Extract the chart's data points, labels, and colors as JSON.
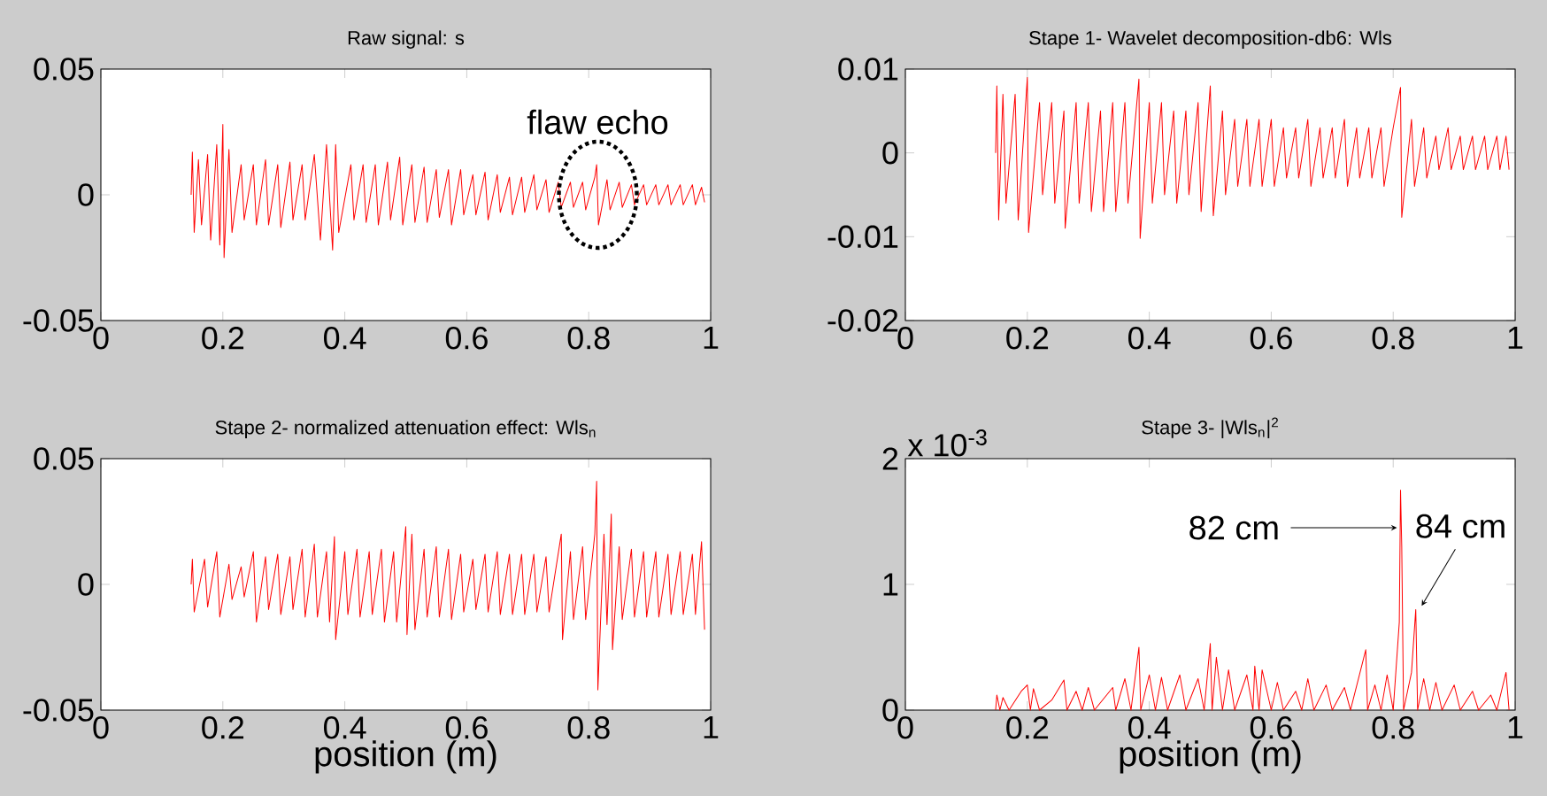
{
  "chart_data": [
    {
      "type": "line",
      "title": "Raw signal: s",
      "color": "#ff0000",
      "xlim": [
        0,
        1
      ],
      "xticks": [
        0,
        0.2,
        0.4,
        0.6,
        0.8,
        1
      ],
      "ylim": [
        -0.05,
        0.05
      ],
      "yticks": [
        -0.05,
        0,
        0.05
      ],
      "annotations": [
        {
          "text": "flaw echo",
          "x": 0.815,
          "y": 0
        }
      ],
      "x": [
        0.148,
        0.15,
        0.153,
        0.16,
        0.165,
        0.175,
        0.18,
        0.19,
        0.195,
        0.2,
        0.202,
        0.21,
        0.215,
        0.23,
        0.235,
        0.25,
        0.255,
        0.27,
        0.275,
        0.29,
        0.295,
        0.31,
        0.315,
        0.33,
        0.335,
        0.35,
        0.36,
        0.37,
        0.38,
        0.385,
        0.39,
        0.41,
        0.415,
        0.43,
        0.435,
        0.45,
        0.455,
        0.47,
        0.475,
        0.49,
        0.495,
        0.51,
        0.515,
        0.53,
        0.535,
        0.55,
        0.555,
        0.57,
        0.575,
        0.59,
        0.595,
        0.61,
        0.615,
        0.63,
        0.635,
        0.65,
        0.655,
        0.67,
        0.675,
        0.69,
        0.695,
        0.71,
        0.715,
        0.73,
        0.735,
        0.75,
        0.755,
        0.77,
        0.775,
        0.79,
        0.795,
        0.81,
        0.813,
        0.816,
        0.83,
        0.835,
        0.85,
        0.855,
        0.87,
        0.875,
        0.89,
        0.895,
        0.91,
        0.915,
        0.93,
        0.935,
        0.95,
        0.955,
        0.97,
        0.975,
        0.985,
        0.99
      ],
      "values": [
        0,
        0.017,
        -0.015,
        0.014,
        -0.012,
        0.016,
        -0.018,
        0.02,
        -0.02,
        0.028,
        -0.025,
        0.018,
        -0.015,
        0.012,
        -0.01,
        0.012,
        -0.012,
        0.014,
        -0.012,
        0.012,
        -0.013,
        0.013,
        -0.01,
        0.012,
        -0.01,
        0.016,
        -0.018,
        0.02,
        -0.022,
        0.02,
        -0.015,
        0.012,
        -0.01,
        0.012,
        -0.011,
        0.012,
        -0.012,
        0.013,
        -0.01,
        0.015,
        -0.012,
        0.012,
        -0.011,
        0.011,
        -0.011,
        0.01,
        -0.009,
        0.01,
        -0.012,
        0.01,
        -0.008,
        0.008,
        -0.008,
        0.009,
        -0.01,
        0.008,
        -0.007,
        0.007,
        -0.008,
        0.007,
        -0.007,
        0.008,
        -0.006,
        0.006,
        -0.007,
        0.005,
        -0.005,
        0.005,
        -0.005,
        0.005,
        -0.006,
        0.007,
        0.012,
        -0.012,
        0.006,
        -0.006,
        0.005,
        -0.005,
        0.004,
        -0.004,
        0.004,
        -0.004,
        0.004,
        -0.004,
        0.004,
        -0.004,
        0.004,
        -0.004,
        0.004,
        -0.004,
        0.003,
        -0.003
      ]
    },
    {
      "type": "line",
      "title": "Stape 1- Wavelet decomposition-db6: Wls",
      "color": "#ff0000",
      "xlim": [
        0,
        1
      ],
      "xticks": [
        0,
        0.2,
        0.4,
        0.6,
        0.8,
        1
      ],
      "ylim": [
        -0.02,
        0.01
      ],
      "yticks": [
        -0.02,
        -0.01,
        0,
        0.01
      ],
      "x": [
        0.148,
        0.15,
        0.153,
        0.16,
        0.165,
        0.18,
        0.185,
        0.2,
        0.202,
        0.22,
        0.225,
        0.24,
        0.245,
        0.26,
        0.262,
        0.28,
        0.285,
        0.3,
        0.305,
        0.32,
        0.325,
        0.34,
        0.345,
        0.36,
        0.365,
        0.383,
        0.385,
        0.4,
        0.405,
        0.42,
        0.425,
        0.44,
        0.445,
        0.46,
        0.465,
        0.48,
        0.485,
        0.5,
        0.505,
        0.52,
        0.525,
        0.54,
        0.545,
        0.56,
        0.565,
        0.58,
        0.585,
        0.6,
        0.605,
        0.62,
        0.625,
        0.64,
        0.645,
        0.66,
        0.665,
        0.68,
        0.685,
        0.7,
        0.705,
        0.72,
        0.725,
        0.74,
        0.745,
        0.76,
        0.765,
        0.78,
        0.785,
        0.8,
        0.812,
        0.814,
        0.83,
        0.835,
        0.85,
        0.855,
        0.87,
        0.875,
        0.89,
        0.895,
        0.91,
        0.915,
        0.93,
        0.935,
        0.95,
        0.955,
        0.97,
        0.975,
        0.985,
        0.99
      ],
      "values": [
        0,
        0.008,
        -0.008,
        0.007,
        -0.006,
        0.007,
        -0.008,
        0.009,
        -0.0095,
        0.006,
        -0.005,
        0.006,
        -0.006,
        0.005,
        -0.009,
        0.006,
        -0.006,
        0.006,
        -0.007,
        0.005,
        -0.007,
        0.006,
        -0.007,
        0.006,
        -0.006,
        0.0088,
        -0.0102,
        0.006,
        -0.006,
        0.006,
        -0.005,
        0.005,
        -0.006,
        0.005,
        -0.005,
        0.006,
        -0.007,
        0.008,
        -0.0075,
        0.005,
        -0.005,
        0.004,
        -0.004,
        0.004,
        -0.004,
        0.004,
        -0.004,
        0.004,
        -0.004,
        0.003,
        -0.003,
        0.003,
        -0.003,
        0.004,
        -0.004,
        0.003,
        -0.003,
        0.003,
        -0.003,
        0.004,
        -0.004,
        0.003,
        -0.003,
        0.003,
        -0.003,
        0.003,
        -0.004,
        0.003,
        0.0078,
        -0.0077,
        0.004,
        -0.004,
        0.003,
        -0.003,
        0.002,
        -0.002,
        0.003,
        -0.002,
        0.002,
        -0.002,
        0.002,
        -0.002,
        0.002,
        -0.002,
        0.002,
        -0.002,
        0.002,
        -0.002
      ]
    },
    {
      "type": "line",
      "title": "Stape 2- normalized attenuation effect: Wls$_{n}$",
      "xlabel": "position (m)",
      "color": "#ff0000",
      "xlim": [
        0,
        1
      ],
      "xticks": [
        0,
        0.2,
        0.4,
        0.6,
        0.8,
        1
      ],
      "ylim": [
        -0.05,
        0.05
      ],
      "yticks": [
        -0.05,
        0,
        0.05
      ],
      "x": [
        0.148,
        0.15,
        0.153,
        0.17,
        0.175,
        0.19,
        0.195,
        0.21,
        0.215,
        0.23,
        0.235,
        0.25,
        0.255,
        0.27,
        0.275,
        0.29,
        0.295,
        0.31,
        0.315,
        0.33,
        0.335,
        0.35,
        0.355,
        0.37,
        0.375,
        0.383,
        0.385,
        0.4,
        0.405,
        0.42,
        0.425,
        0.44,
        0.445,
        0.46,
        0.465,
        0.48,
        0.485,
        0.5,
        0.502,
        0.51,
        0.515,
        0.53,
        0.535,
        0.55,
        0.555,
        0.57,
        0.575,
        0.59,
        0.595,
        0.61,
        0.615,
        0.63,
        0.635,
        0.65,
        0.655,
        0.67,
        0.675,
        0.69,
        0.695,
        0.71,
        0.715,
        0.73,
        0.735,
        0.755,
        0.757,
        0.77,
        0.775,
        0.79,
        0.795,
        0.81,
        0.813,
        0.815,
        0.825,
        0.83,
        0.837,
        0.839,
        0.85,
        0.855,
        0.87,
        0.875,
        0.89,
        0.895,
        0.91,
        0.915,
        0.93,
        0.935,
        0.95,
        0.955,
        0.97,
        0.975,
        0.985,
        0.99
      ],
      "values": [
        0,
        0.01,
        -0.011,
        0.01,
        -0.009,
        0.013,
        -0.013,
        0.008,
        -0.006,
        0.007,
        -0.005,
        0.013,
        -0.015,
        0.011,
        -0.01,
        0.012,
        -0.012,
        0.011,
        -0.01,
        0.014,
        -0.013,
        0.016,
        -0.013,
        0.013,
        -0.015,
        0.019,
        -0.022,
        0.013,
        -0.012,
        0.014,
        -0.013,
        0.013,
        -0.012,
        0.014,
        -0.015,
        0.013,
        -0.015,
        0.023,
        -0.02,
        0.02,
        -0.018,
        0.014,
        -0.013,
        0.015,
        -0.013,
        0.014,
        -0.014,
        0.012,
        -0.011,
        0.01,
        -0.01,
        0.012,
        -0.011,
        0.013,
        -0.012,
        0.012,
        -0.012,
        0.012,
        -0.012,
        0.012,
        -0.011,
        0.011,
        -0.011,
        0.02,
        -0.022,
        0.013,
        -0.014,
        0.015,
        -0.014,
        0.02,
        0.041,
        -0.042,
        0.02,
        -0.016,
        0.028,
        -0.026,
        0.015,
        -0.014,
        0.014,
        -0.013,
        0.013,
        -0.013,
        0.013,
        -0.013,
        0.012,
        -0.012,
        0.013,
        -0.012,
        0.012,
        -0.012,
        0.017,
        -0.018
      ]
    },
    {
      "type": "line",
      "title": "Stape 3- |Wls$_{n}$|$^{2}$",
      "xlabel": "position (m)",
      "color": "#ff0000",
      "xlim": [
        0,
        1
      ],
      "xticks": [
        0,
        0.2,
        0.4,
        0.6,
        0.8,
        1
      ],
      "ylim": [
        0,
        2
      ],
      "yticks": [
        0,
        1,
        2
      ],
      "annotations": [
        "x 10$^{-3}$",
        {
          "text": "82 cm",
          "x": 0.812,
          "y": 1.45
        },
        {
          "text": "84 cm",
          "x": 0.838,
          "y": 0.83
        }
      ],
      "x": [
        0.148,
        0.15,
        0.155,
        0.16,
        0.17,
        0.19,
        0.2,
        0.205,
        0.21,
        0.22,
        0.24,
        0.26,
        0.265,
        0.28,
        0.29,
        0.3,
        0.31,
        0.33,
        0.34,
        0.345,
        0.36,
        0.37,
        0.383,
        0.386,
        0.4,
        0.41,
        0.42,
        0.43,
        0.45,
        0.46,
        0.48,
        0.49,
        0.5,
        0.503,
        0.51,
        0.52,
        0.53,
        0.54,
        0.56,
        0.57,
        0.573,
        0.58,
        0.585,
        0.6,
        0.61,
        0.62,
        0.64,
        0.65,
        0.66,
        0.67,
        0.69,
        0.7,
        0.72,
        0.73,
        0.755,
        0.758,
        0.77,
        0.78,
        0.79,
        0.8,
        0.81,
        0.812,
        0.814,
        0.817,
        0.83,
        0.837,
        0.84,
        0.85,
        0.86,
        0.87,
        0.88,
        0.9,
        0.91,
        0.93,
        0.94,
        0.96,
        0.97,
        0.985,
        0.99
      ],
      "values": [
        0,
        0.12,
        0,
        0.1,
        0,
        0.15,
        0.2,
        0,
        0.17,
        0,
        0.08,
        0.24,
        0,
        0.15,
        0,
        0.18,
        0,
        0.12,
        0.18,
        0,
        0.25,
        0,
        0.5,
        0,
        0.28,
        0,
        0.26,
        0,
        0.28,
        0,
        0.25,
        0,
        0.53,
        0,
        0.42,
        0,
        0.32,
        0,
        0.28,
        0,
        0.35,
        0,
        0.32,
        0,
        0.22,
        0,
        0.15,
        0,
        0.25,
        0,
        0.2,
        0,
        0.18,
        0,
        0.48,
        0,
        0.2,
        0,
        0.28,
        0,
        0.7,
        1.75,
        1.3,
        0,
        0.3,
        0.8,
        0,
        0.25,
        0,
        0.22,
        0,
        0.2,
        0,
        0.15,
        0,
        0.12,
        0,
        0.3,
        0
      ]
    }
  ]
}
